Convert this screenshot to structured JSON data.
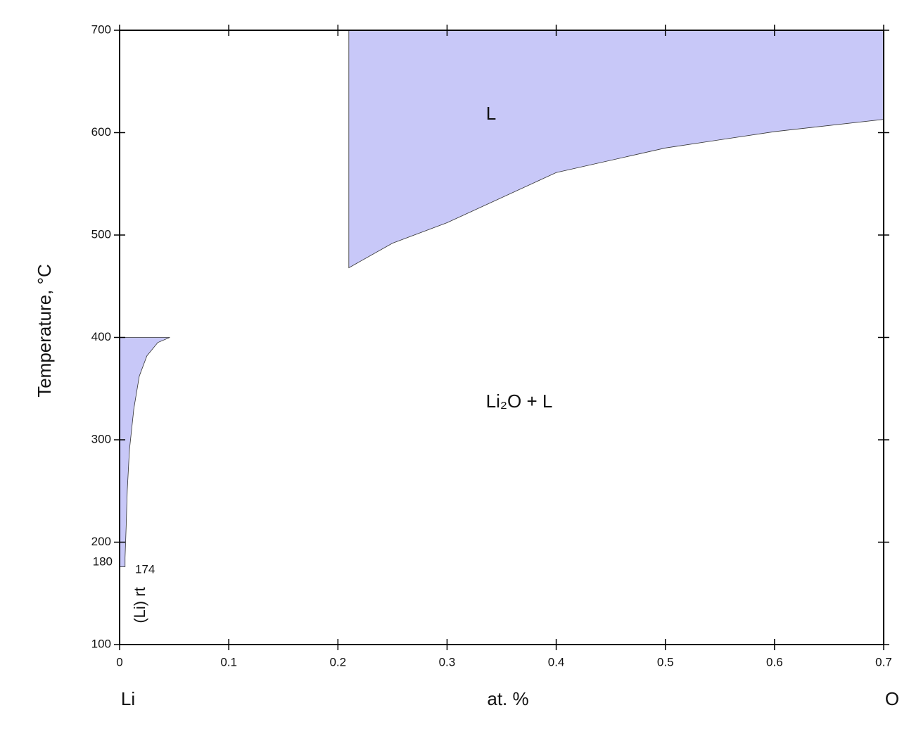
{
  "chart_data": {
    "type": "area",
    "x_label": "at. %",
    "y_label": "Temperature, °C",
    "x_left_label": "Li",
    "x_right_label": "O",
    "xlim": [
      0,
      0.7
    ],
    "ylim": [
      100,
      700
    ],
    "xticks": [
      0,
      0.1,
      0.2,
      0.3,
      0.4,
      0.5,
      0.6,
      0.7
    ],
    "yticks": [
      100,
      200,
      300,
      400,
      500,
      600,
      700
    ],
    "color": "#c8c8f8",
    "regions": [
      {
        "name": "L",
        "x": [
          0.21,
          0.21,
          0.25,
          0.3,
          0.4,
          0.5,
          0.6,
          0.7,
          0.7
        ],
        "y": [
          700,
          468,
          492,
          512,
          561,
          585,
          601,
          613,
          700
        ]
      },
      {
        "x": [
          0,
          0.046,
          0.035,
          0.025,
          0.018,
          0.013,
          0.009,
          0.007,
          0.006,
          0.005,
          0.005,
          0
        ],
        "y": [
          400,
          400,
          395,
          382,
          362,
          330,
          290,
          250,
          215,
          185,
          176,
          176
        ]
      }
    ],
    "annotations": [
      "Li₂O + L",
      "(Li) rt",
      "180",
      "174"
    ]
  }
}
